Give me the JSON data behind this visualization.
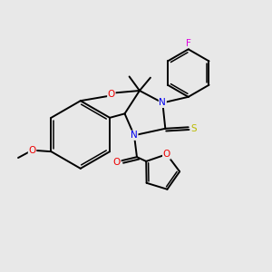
{
  "background_color": "#e8e8e8",
  "bond_color": "#000000",
  "atom_colors": {
    "N": "#0000ee",
    "O": "#ee0000",
    "S": "#bbbb00",
    "F": "#dd00dd",
    "C": "#000000"
  },
  "figsize": [
    3.0,
    3.0
  ],
  "dpi": 100,
  "lw": 1.4,
  "lw_inner": 1.1,
  "fontsize": 7.5
}
